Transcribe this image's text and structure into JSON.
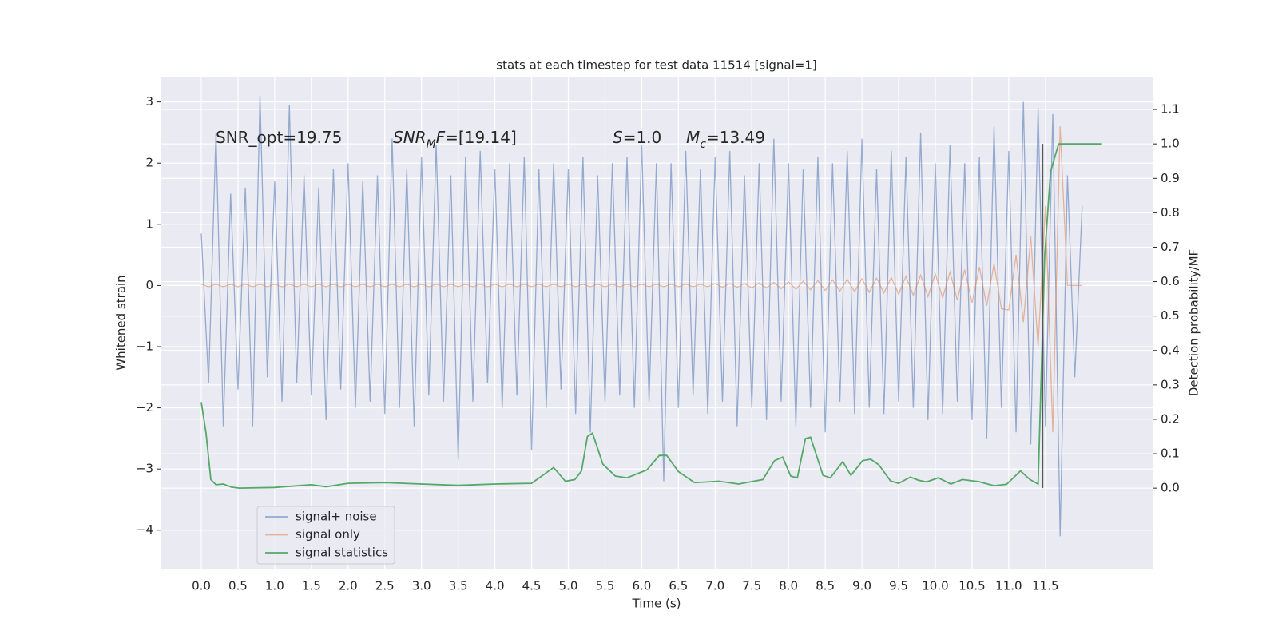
{
  "chart_data": {
    "type": "line",
    "title": "stats at each timestep for test data 11514 [signal=1]",
    "xlabel": "Time (s)",
    "ylabel": "Whitened strain",
    "y2label": "Detection probability/MF",
    "xlim": [
      -0.544,
      12.96
    ],
    "ylim": [
      -4.63,
      3.4
    ],
    "y2lim": [
      -0.234,
      1.193
    ],
    "xticks": [
      {
        "value": 0,
        "label": "0.0"
      },
      0.5,
      {
        "value": 1,
        "label": "1.0"
      },
      1.5,
      {
        "value": 2,
        "label": "2.0"
      },
      2.5,
      {
        "value": 3,
        "label": "3.0"
      },
      3.5,
      {
        "value": 4,
        "label": "4.0"
      },
      4.5,
      {
        "value": 5,
        "label": "5.0"
      },
      5.5,
      {
        "value": 6,
        "label": "6.0"
      },
      6.5,
      {
        "value": 7,
        "label": "7.0"
      },
      7.5,
      {
        "value": 8,
        "label": "8.0"
      },
      8.5,
      {
        "value": 9,
        "label": "9.0"
      },
      9.5,
      {
        "value": 10,
        "label": "10.0"
      },
      10.5,
      {
        "value": 11,
        "label": "11.0"
      },
      11.5
    ],
    "yticks": [
      {
        "value": -4,
        "label": "−4"
      },
      {
        "value": -3,
        "label": "−3"
      },
      {
        "value": -2,
        "label": "−2"
      },
      {
        "value": -1,
        "label": "−1"
      },
      0,
      1,
      2,
      3
    ],
    "y2ticks": [
      {
        "value": 0,
        "label": "0.0"
      },
      0.1,
      0.2,
      0.3,
      0.4,
      0.5,
      0.6,
      0.7,
      0.8,
      0.9,
      {
        "value": 1,
        "label": "1.0"
      },
      1.1
    ],
    "grid": true,
    "legend": "lower left",
    "x": [
      0.0,
      0.1,
      0.2,
      0.3,
      0.4,
      0.5,
      0.6,
      0.7,
      0.8,
      0.9,
      1.0,
      1.1,
      1.2,
      1.3,
      1.4,
      1.5,
      1.6,
      1.7,
      1.8,
      1.9,
      2.0,
      2.1,
      2.2,
      2.3,
      2.4,
      2.5,
      2.6,
      2.7,
      2.8,
      2.9,
      3.0,
      3.1,
      3.2,
      3.3,
      3.4,
      3.5,
      3.6,
      3.7,
      3.8,
      3.9,
      4.0,
      4.1,
      4.2,
      4.3,
      4.4,
      4.5,
      4.6,
      4.7,
      4.8,
      4.9,
      5.0,
      5.1,
      5.2,
      5.3,
      5.4,
      5.5,
      5.6,
      5.7,
      5.8,
      5.9,
      6.0,
      6.1,
      6.2,
      6.3,
      6.4,
      6.5,
      6.6,
      6.7,
      6.8,
      6.9,
      7.0,
      7.1,
      7.2,
      7.3,
      7.4,
      7.5,
      7.6,
      7.7,
      7.8,
      7.9,
      8.0,
      8.1,
      8.2,
      8.3,
      8.4,
      8.5,
      8.6,
      8.7,
      8.8,
      8.9,
      9.0,
      9.1,
      9.2,
      9.3,
      9.4,
      9.5,
      9.6,
      9.7,
      9.8,
      9.9,
      10.0,
      10.1,
      10.2,
      10.3,
      10.4,
      10.5,
      10.6,
      10.7,
      10.8,
      10.9,
      11.0,
      11.1,
      11.2,
      11.3,
      11.4,
      11.5,
      11.6,
      11.7,
      11.8,
      11.9,
      12.0
    ],
    "series": [
      {
        "name": "signal+ noise",
        "color": "#4c72b0",
        "values": [
          0.85,
          -1.6,
          2.5,
          -2.3,
          1.5,
          -1.7,
          1.6,
          -2.3,
          3.1,
          -1.5,
          1.7,
          -1.9,
          2.95,
          -1.6,
          1.8,
          -1.8,
          1.6,
          -2.2,
          1.9,
          -1.7,
          2.0,
          -2.0,
          1.7,
          -1.9,
          1.8,
          -2.1,
          2.4,
          -2.0,
          1.9,
          -2.3,
          2.1,
          -1.8,
          2.3,
          -1.9,
          1.8,
          -2.85,
          2.1,
          -1.9,
          2.2,
          -1.6,
          1.9,
          -2.0,
          2.0,
          -1.8,
          2.1,
          -2.7,
          1.9,
          -2.0,
          2.0,
          -1.7,
          1.9,
          -2.1,
          2.1,
          -2.4,
          1.8,
          -1.9,
          2.0,
          -1.8,
          2.1,
          -2.0,
          2.3,
          -1.9,
          2.0,
          -3.2,
          2.0,
          -2.0,
          2.2,
          -1.8,
          1.9,
          -2.1,
          2.1,
          -1.9,
          2.2,
          -2.3,
          1.8,
          -2.0,
          2.0,
          -2.2,
          2.4,
          -1.9,
          2.0,
          -2.3,
          1.9,
          -2.0,
          2.1,
          -2.4,
          2.0,
          -1.9,
          2.2,
          -2.1,
          2.4,
          -2.0,
          1.9,
          -2.1,
          2.2,
          -1.9,
          2.1,
          -2.0,
          2.5,
          -2.2,
          2.0,
          -2.1,
          2.3,
          -1.9,
          2.0,
          -2.2,
          2.1,
          -2.5,
          2.6,
          -2.0,
          2.2,
          -2.4,
          3.0,
          -2.6,
          2.9,
          -2.3,
          2.8,
          -4.1,
          1.8,
          -1.5,
          1.3
        ]
      },
      {
        "name": "signal only",
        "color": "#dd8452",
        "values": [
          0.02,
          -0.02,
          0.02,
          -0.02,
          0.02,
          -0.02,
          0.02,
          -0.02,
          0.02,
          -0.02,
          0.02,
          -0.02,
          0.02,
          -0.02,
          0.02,
          -0.02,
          0.02,
          -0.02,
          0.02,
          -0.02,
          0.02,
          -0.02,
          0.02,
          -0.02,
          0.02,
          -0.02,
          0.02,
          -0.02,
          0.02,
          -0.02,
          0.02,
          -0.02,
          0.02,
          -0.02,
          0.02,
          -0.02,
          0.02,
          -0.02,
          0.02,
          -0.02,
          0.02,
          -0.02,
          0.02,
          -0.02,
          0.02,
          -0.02,
          0.02,
          -0.02,
          0.02,
          -0.02,
          0.02,
          -0.02,
          0.02,
          -0.02,
          0.02,
          -0.02,
          0.02,
          -0.02,
          0.02,
          -0.02,
          0.02,
          -0.02,
          0.02,
          -0.02,
          0.02,
          -0.02,
          0.02,
          -0.02,
          0.02,
          -0.02,
          0.03,
          -0.03,
          0.03,
          -0.03,
          0.03,
          -0.04,
          0.04,
          -0.04,
          0.05,
          -0.05,
          0.06,
          -0.06,
          0.07,
          -0.07,
          0.08,
          -0.08,
          0.09,
          -0.09,
          0.1,
          -0.1,
          0.11,
          -0.11,
          0.12,
          -0.12,
          0.13,
          -0.14,
          0.15,
          -0.16,
          0.17,
          -0.18,
          0.19,
          -0.2,
          0.22,
          -0.24,
          0.26,
          -0.28,
          0.3,
          -0.33,
          0.36,
          -0.38,
          -0.4,
          0.5,
          -0.6,
          0.8,
          -1.0,
          1.3,
          -2.4,
          2.6,
          0.0,
          0.0,
          0.0
        ]
      },
      {
        "name": "signal statistics",
        "color": "#55a868",
        "axis": "y2",
        "x": [
          0.0,
          0.065,
          0.13,
          0.2,
          0.3,
          0.41,
          0.52,
          1.0,
          1.5,
          1.7,
          2.0,
          2.5,
          3.0,
          3.5,
          4.0,
          4.5,
          4.8,
          4.96,
          5.09,
          5.18,
          5.26,
          5.33,
          5.47,
          5.64,
          5.8,
          6.07,
          6.24,
          6.34,
          6.5,
          6.72,
          7.05,
          7.32,
          7.65,
          7.81,
          7.92,
          8.03,
          8.12,
          8.23,
          8.3,
          8.47,
          8.57,
          8.74,
          8.85,
          9.01,
          9.12,
          9.23,
          9.39,
          9.5,
          9.66,
          9.77,
          9.88,
          10.04,
          10.21,
          10.37,
          10.59,
          10.8,
          10.97,
          11.16,
          11.29,
          11.4,
          11.49,
          11.57,
          11.68,
          12.27
        ],
        "values": [
          0.25,
          0.16,
          0.025,
          0.01,
          0.012,
          0.003,
          0.0,
          0.002,
          0.01,
          0.004,
          0.014,
          0.016,
          0.012,
          0.008,
          0.012,
          0.014,
          0.06,
          0.02,
          0.025,
          0.05,
          0.15,
          0.16,
          0.07,
          0.035,
          0.03,
          0.053,
          0.095,
          0.095,
          0.048,
          0.016,
          0.02,
          0.012,
          0.025,
          0.08,
          0.09,
          0.035,
          0.03,
          0.144,
          0.148,
          0.037,
          0.03,
          0.077,
          0.037,
          0.08,
          0.084,
          0.068,
          0.021,
          0.014,
          0.032,
          0.023,
          0.018,
          0.03,
          0.012,
          0.025,
          0.019,
          0.007,
          0.011,
          0.05,
          0.025,
          0.012,
          0.675,
          0.92,
          1.0,
          1.0
        ]
      }
    ],
    "vline": {
      "x": 11.46,
      "y2range": [
        0.0,
        1.0
      ],
      "color": "#555555"
    },
    "annotations": [
      {
        "segments": [
          {
            "text": "SNR_opt=19.75"
          }
        ]
      },
      {
        "segments": [
          {
            "text": "SNR",
            "style": "italic"
          },
          {
            "text": "M",
            "style": "italic-sub"
          },
          {
            "text": "F",
            "style": "italic"
          },
          {
            "text": "=[19.14]"
          }
        ]
      },
      {
        "segments": [
          {
            "text": "S",
            "style": "italic"
          },
          {
            "text": "=1.0"
          }
        ]
      },
      {
        "segments": [
          {
            "text": "M",
            "style": "italic"
          },
          {
            "text": "c",
            "style": "italic-sub"
          },
          {
            "text": "=13.49"
          }
        ]
      }
    ]
  }
}
